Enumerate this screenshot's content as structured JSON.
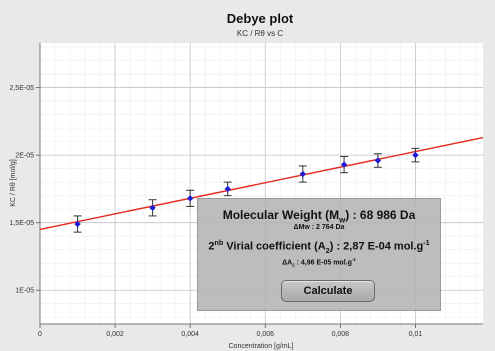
{
  "chart_data": {
    "type": "scatter",
    "title": "Debye plot",
    "subtitle": "KC / Rθ vs C",
    "xlabel": "Concentration [g/mL]",
    "ylabel": "KC / Rθ [mol/g]",
    "xlim": [
      0,
      0.0118
    ],
    "ylim": [
      7.5e-06,
      2.83e-05
    ],
    "x_ticks": [
      0,
      0.002,
      0.004,
      0.006,
      0.008,
      0.01
    ],
    "x_tick_labels": [
      "0",
      "0,002",
      "0,004",
      "0,006",
      "0,008",
      "0,01"
    ],
    "y_ticks": [
      1e-05,
      1.5e-05,
      2e-05,
      2.5e-05
    ],
    "y_tick_labels": [
      "1E-05",
      "1,5E-05",
      "2E-05",
      "2,5E-05"
    ],
    "grid": true,
    "series": [
      {
        "x": [
          0.001,
          0.003,
          0.004,
          0.005,
          0.007,
          0.0081,
          0.009,
          0.01
        ],
        "y": [
          1.49e-05,
          1.61e-05,
          1.68e-05,
          1.75e-05,
          1.86e-05,
          1.93e-05,
          1.96e-05,
          2e-05
        ],
        "error": [
          6e-07,
          6e-07,
          6e-07,
          5e-07,
          6e-07,
          6e-07,
          5e-07,
          5e-07
        ],
        "color": "#1d1dd6"
      }
    ],
    "fit_line": {
      "x": [
        0,
        0.0118
      ],
      "y": [
        1.45e-05,
        2.13e-05
      ],
      "color": "#e8281e"
    }
  },
  "results": {
    "mw_label": "Molecular Weight (M",
    "mw_sub": "w",
    "mw_value": ") : 68 986 Da",
    "dmw": "ΔMw : 2 764 Da",
    "a2_sup": "nb",
    "a2_label": " Virial coefficient (A",
    "a2_lead": "2",
    "a2_sub": "2",
    "a2_value": ") : 2,87 E-04 mol.g",
    "a2_unit_sup": "-1",
    "da2_label": "ΔA",
    "da2_sub": "2",
    "da2_value": " : 4,96 E-05 mol.g",
    "da2_unit_sup": "-1",
    "calculate_label": "Calculate"
  }
}
